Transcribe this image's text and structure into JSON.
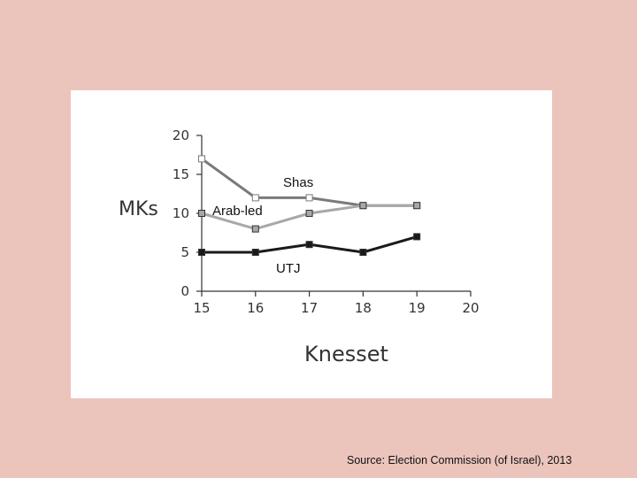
{
  "source_note": "Source: Election Commission (of Israel), 2013",
  "chart_data": {
    "type": "line",
    "xlabel": "Knesset",
    "ylabel": "MKs",
    "xlim": [
      15,
      20
    ],
    "ylim": [
      0,
      20
    ],
    "x_ticks": [
      15,
      16,
      17,
      18,
      19,
      20
    ],
    "y_ticks": [
      0,
      5,
      10,
      15,
      20
    ],
    "x": [
      15,
      16,
      17,
      18,
      19
    ],
    "series": [
      {
        "name": "Shas",
        "values": [
          17,
          12,
          12,
          11,
          11
        ],
        "color": "#7a7a7a",
        "marker": "open-square"
      },
      {
        "name": "Arab-led",
        "values": [
          10,
          8,
          10,
          11,
          11
        ],
        "color": "#a8a8a8",
        "marker": "filled-square"
      },
      {
        "name": "UTJ",
        "values": [
          5,
          5,
          6,
          5,
          7
        ],
        "color": "#1a1a1a",
        "marker": "filled-square"
      }
    ]
  }
}
